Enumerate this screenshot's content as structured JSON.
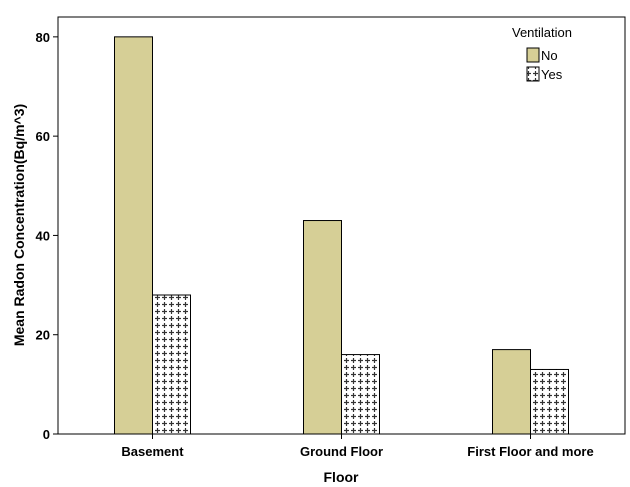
{
  "chart_data": {
    "type": "bar",
    "categories": [
      "Basement",
      "Ground Floor",
      "First Floor and more"
    ],
    "series": [
      {
        "name": "No",
        "values": [
          80,
          43,
          17
        ],
        "color": "#d6cf96",
        "pattern": "solid"
      },
      {
        "name": "Yes",
        "values": [
          28,
          16,
          13
        ],
        "color": "#ffffff",
        "pattern": "crosshatch"
      }
    ],
    "xlabel": "Floor",
    "ylabel": "Mean Radon Concentration(Bq/m^3)",
    "ylim": [
      0,
      84
    ],
    "yticks": [
      0,
      20,
      40,
      60,
      80
    ],
    "legend": {
      "title": "Ventilation",
      "placement": "top-right"
    },
    "grid": false
  }
}
